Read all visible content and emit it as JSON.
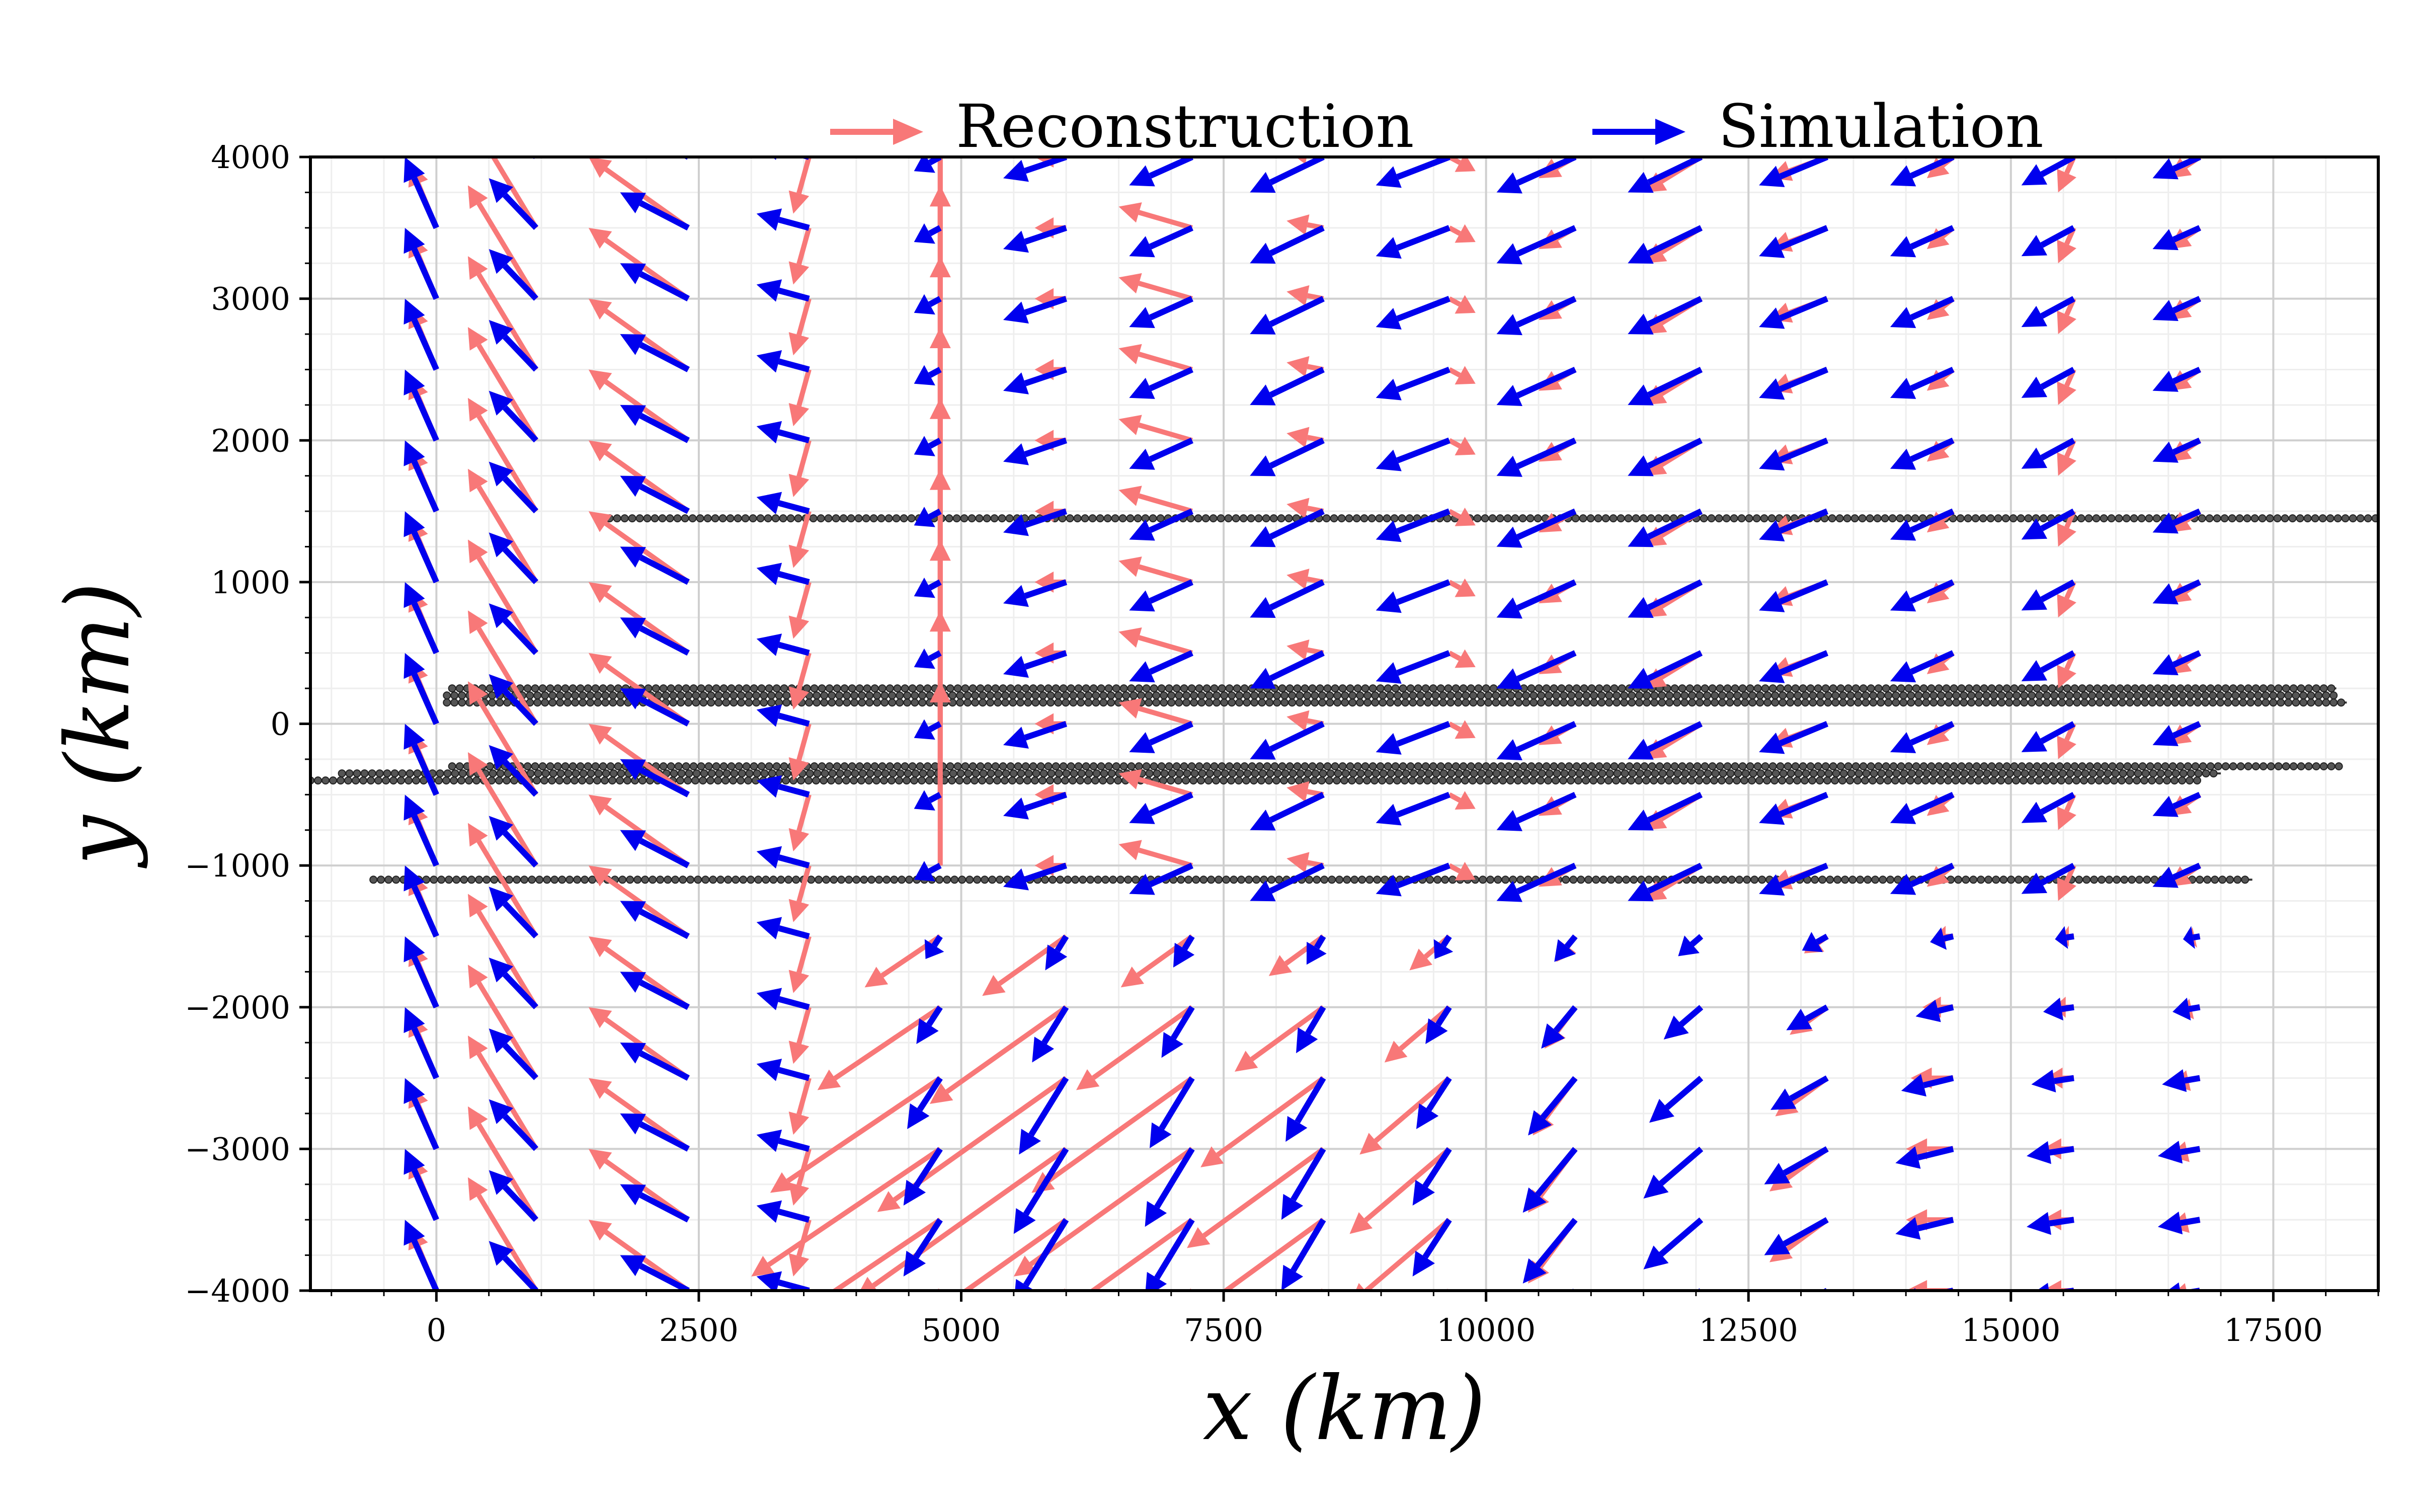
{
  "chart_data": {
    "type": "quiver",
    "xlabel": "x (km)",
    "ylabel": "y (km)",
    "xlim": [
      -1200,
      18500
    ],
    "ylim": [
      -4000,
      4000
    ],
    "xticks": [
      0,
      2500,
      5000,
      7500,
      10000,
      12500,
      15000,
      17500
    ],
    "yticks": [
      -4000,
      -3000,
      -2000,
      -1000,
      0,
      1000,
      2000,
      3000,
      4000
    ],
    "xtick_labels": [
      "0",
      "2500",
      "5000",
      "7500",
      "10000",
      "12500",
      "15000",
      "17500"
    ],
    "ytick_labels": [
      "−4000",
      "−3000",
      "−2000",
      "−1000",
      "0",
      "1000",
      "2000",
      "3000",
      "4000"
    ],
    "grid": true,
    "legend": {
      "position": "top",
      "entries": [
        {
          "label": "Reconstruction",
          "color": "#f87878"
        },
        {
          "label": "Simulation",
          "color": "#0000ee"
        }
      ]
    },
    "grid_x": [
      0,
      950,
      2400,
      3550,
      4800,
      6000,
      7200,
      8450,
      9650,
      10850,
      12050,
      13250,
      14450,
      15600,
      16800
    ],
    "grid_y": [
      4000,
      3500,
      3000,
      2500,
      2000,
      1500,
      1000,
      500,
      0,
      -500,
      -1000,
      -1500,
      -2000,
      -2500,
      -3000,
      -3500,
      -4000
    ],
    "series": [
      {
        "name": "Reconstruction",
        "color": "#f87878",
        "u_columns": [
          -250,
          -650,
          -950,
          -150,
          0,
          -300,
          -700,
          -350,
          250,
          -350,
          -550,
          -550,
          -250,
          -150,
          -300
        ],
        "v_columns": [
          450,
          800,
          500,
          -400,
          1300,
          0,
          150,
          50,
          -100,
          -150,
          -250,
          -150,
          -150,
          -250,
          -150
        ],
        "u_south_jet": [
          0,
          0,
          0,
          0,
          -1800,
          -2000,
          -1700,
          -1300,
          -950,
          -450,
          -550,
          -550,
          -450,
          -300,
          -300
        ],
        "v_south_jet": [
          0,
          0,
          0,
          0,
          -900,
          -1050,
          -900,
          -700,
          -600,
          -450,
          -350,
          -300,
          0,
          0,
          -50
        ]
      },
      {
        "name": "Simulation",
        "color": "#0000ee",
        "u_columns": [
          -300,
          -450,
          -650,
          -500,
          -250,
          -600,
          -600,
          -700,
          -700,
          -750,
          -700,
          -650,
          -600,
          -500,
          -450
        ],
        "v_columns": [
          500,
          350,
          250,
          100,
          -100,
          -150,
          -200,
          -250,
          -200,
          -250,
          -250,
          -200,
          -200,
          -200,
          -150
        ],
        "u_south_jet": [
          0,
          0,
          0,
          0,
          -350,
          -500,
          -450,
          -400,
          -350,
          -500,
          -550,
          -600,
          -550,
          -450,
          -400
        ],
        "v_south_jet": [
          0,
          0,
          0,
          0,
          -400,
          -600,
          -550,
          -500,
          -400,
          -450,
          -350,
          -250,
          -100,
          -50,
          -50
        ]
      }
    ],
    "track_lines": [
      {
        "y": 1450,
        "x_start": 1650,
        "x_end": 18500
      },
      {
        "y": 250,
        "x_start": 150,
        "x_end": 18100
      },
      {
        "y": 200,
        "x_start": 100,
        "x_end": 18100
      },
      {
        "y": 150,
        "x_start": 100,
        "x_end": 18200
      },
      {
        "y": -300,
        "x_start": 150,
        "x_end": 18150
      },
      {
        "y": -350,
        "x_start": -900,
        "x_end": 17000
      },
      {
        "y": -400,
        "x_start": -1200,
        "x_end": 16800
      },
      {
        "y": -1100,
        "x_start": -600,
        "x_end": 17300
      }
    ]
  }
}
